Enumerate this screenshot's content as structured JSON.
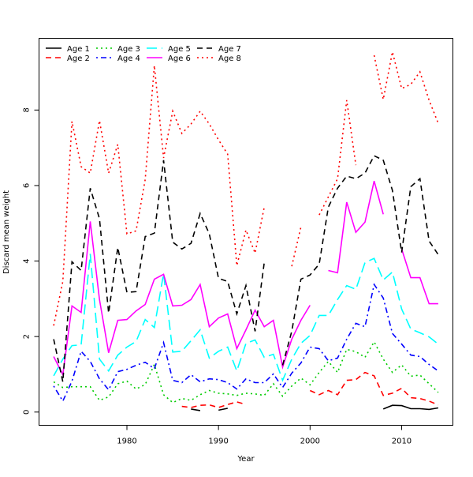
{
  "chart_data": {
    "type": "line",
    "title": "",
    "xlabel": "Year",
    "ylabel": "Discard mean weight",
    "xlim": [
      1970.4,
      2015.6
    ],
    "ylim": [
      -0.35,
      9.9
    ],
    "xticks": [
      1980,
      1990,
      2000,
      2010
    ],
    "yticks": [
      0,
      2,
      4,
      6,
      8
    ],
    "grid": false,
    "legend_position": "top-left",
    "x": [
      1972,
      1973,
      1974,
      1975,
      1976,
      1977,
      1978,
      1979,
      1980,
      1981,
      1982,
      1983,
      1984,
      1985,
      1986,
      1987,
      1988,
      1989,
      1990,
      1991,
      1992,
      1993,
      1994,
      1995,
      1996,
      1997,
      1998,
      1999,
      2000,
      2001,
      2002,
      2003,
      2004,
      2005,
      2006,
      2007,
      2008,
      2009,
      2010,
      2011,
      2012,
      2013,
      2014
    ],
    "series": [
      {
        "name": "Age 1",
        "color": "#000000",
        "style": "solid",
        "values": [
          null,
          null,
          null,
          null,
          null,
          null,
          null,
          null,
          null,
          null,
          null,
          null,
          null,
          null,
          null,
          0.08,
          0.04,
          null,
          0.05,
          0.1,
          null,
          null,
          null,
          null,
          null,
          null,
          null,
          null,
          null,
          null,
          null,
          null,
          null,
          null,
          null,
          null,
          0.08,
          0.18,
          0.17,
          0.09,
          0.09,
          0.07,
          0.11
        ]
      },
      {
        "name": "Age 2",
        "color": "#ff0000",
        "style": "dashed",
        "values": [
          null,
          null,
          null,
          null,
          null,
          null,
          null,
          null,
          null,
          null,
          null,
          null,
          null,
          null,
          0.15,
          0.12,
          0.18,
          0.19,
          0.12,
          0.2,
          0.27,
          0.2,
          null,
          null,
          null,
          null,
          null,
          null,
          0.57,
          0.46,
          0.57,
          0.46,
          0.84,
          0.86,
          1.05,
          0.96,
          0.44,
          0.5,
          0.63,
          0.38,
          0.36,
          0.29,
          0.19
        ]
      },
      {
        "name": "Age 3",
        "color": "#00cc00",
        "style": "dotted",
        "values": [
          0.8,
          0.65,
          0.67,
          0.67,
          0.67,
          0.31,
          0.4,
          0.75,
          0.82,
          0.61,
          0.73,
          1.26,
          0.46,
          0.25,
          0.36,
          0.31,
          0.46,
          0.57,
          0.5,
          0.48,
          0.44,
          0.5,
          0.48,
          0.44,
          0.75,
          0.42,
          0.69,
          0.9,
          0.72,
          1.05,
          1.34,
          1.05,
          1.66,
          1.6,
          1.45,
          1.86,
          1.4,
          1.05,
          1.25,
          0.95,
          0.98,
          0.75,
          0.52
        ]
      },
      {
        "name": "Age 4",
        "color": "#0000ff",
        "style": "dotdash",
        "values": [
          0.69,
          0.29,
          0.82,
          1.61,
          1.34,
          0.88,
          0.59,
          1.07,
          1.13,
          1.24,
          1.32,
          1.15,
          1.84,
          0.84,
          0.78,
          0.99,
          0.8,
          0.88,
          0.86,
          0.78,
          0.61,
          0.88,
          0.78,
          0.78,
          1.01,
          0.65,
          1.03,
          1.3,
          1.72,
          1.68,
          1.36,
          1.43,
          1.93,
          2.35,
          2.26,
          3.38,
          3.02,
          2.08,
          1.8,
          1.51,
          1.47,
          1.26,
          1.09
        ]
      },
      {
        "name": "Age 5",
        "color": "#00ffff",
        "style": "longdash",
        "values": [
          0.96,
          1.4,
          1.76,
          1.78,
          4.19,
          1.4,
          1.09,
          1.51,
          1.72,
          1.87,
          2.45,
          2.24,
          3.67,
          1.59,
          1.61,
          1.89,
          2.18,
          1.43,
          1.61,
          1.72,
          1.09,
          1.82,
          1.91,
          1.45,
          1.53,
          0.84,
          1.4,
          1.82,
          2.03,
          2.56,
          2.56,
          2.98,
          3.35,
          3.25,
          3.96,
          4.07,
          3.5,
          3.71,
          2.73,
          2.2,
          2.1,
          1.99,
          1.8
        ]
      },
      {
        "name": "Age 6",
        "color": "#ff00ff",
        "style": "solid",
        "values": [
          1.47,
          0.99,
          2.81,
          2.64,
          5.05,
          2.98,
          1.57,
          2.43,
          2.45,
          2.68,
          2.85,
          3.52,
          3.65,
          2.81,
          2.83,
          2.98,
          3.38,
          2.26,
          2.49,
          2.6,
          1.68,
          2.18,
          2.7,
          2.26,
          2.43,
          1.19,
          1.93,
          2.43,
          2.83,
          null,
          3.75,
          3.69,
          5.56,
          4.76,
          5.03,
          6.12,
          5.24,
          null,
          4.32,
          3.56,
          3.56,
          2.87,
          2.87
        ]
      },
      {
        "name": "Age 7",
        "color": "#000000",
        "style": "dashed",
        "values": [
          1.93,
          0.8,
          3.98,
          3.75,
          5.93,
          5.12,
          2.62,
          4.36,
          3.17,
          3.19,
          4.65,
          4.74,
          6.67,
          4.5,
          4.32,
          4.47,
          5.26,
          4.72,
          3.54,
          3.46,
          2.6,
          3.35,
          2.14,
          3.96,
          null,
          1.24,
          2.14,
          3.52,
          3.63,
          3.92,
          5.43,
          5.93,
          6.25,
          6.18,
          6.33,
          6.79,
          6.67,
          5.87,
          4.23,
          5.97,
          6.18,
          4.53,
          4.17
        ]
      },
      {
        "name": "Age 8",
        "color": "#ff0000",
        "style": "dotted",
        "values": [
          2.29,
          3.46,
          7.7,
          6.5,
          6.33,
          7.72,
          6.33,
          7.09,
          4.72,
          4.8,
          6.16,
          9.18,
          6.73,
          7.97,
          7.38,
          7.63,
          7.97,
          7.63,
          7.21,
          6.83,
          3.88,
          4.82,
          4.21,
          5.43,
          null,
          null,
          3.86,
          4.9,
          null,
          5.22,
          5.7,
          6.18,
          8.26,
          6.54,
          null,
          9.45,
          8.28,
          9.54,
          8.57,
          8.68,
          9.01,
          8.26,
          7.65
        ]
      }
    ]
  }
}
